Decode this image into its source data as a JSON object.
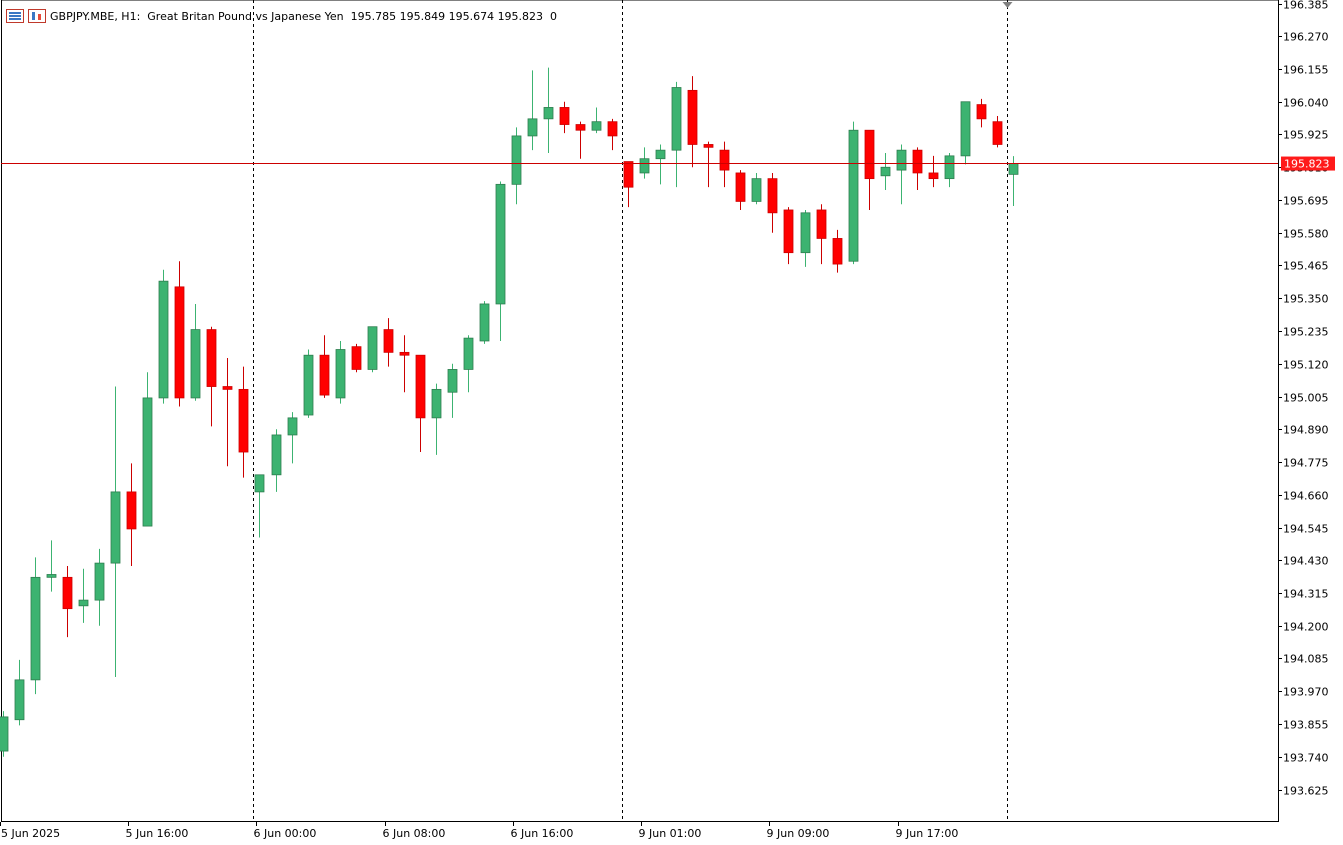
{
  "header": {
    "symbol_line": "GBPJPY.MBE, H1:  Great Britan Pound vs Japanese Yen  195.785 195.849 195.674 195.823  0",
    "icons": [
      "chart-menu-icon",
      "candle-chart-icon"
    ]
  },
  "price_label": "195.823",
  "colors": {
    "bull": "#3cb371",
    "bear": "#ff0000",
    "bid_line": "#cc0000",
    "wick_up": "#3cb371",
    "wick_down": "#cc0000"
  },
  "chart_data": {
    "type": "candlestick",
    "symbol": "GBPJPY.MBE",
    "timeframe": "H1",
    "ylim": [
      193.55,
      196.385
    ],
    "y_ticks": [
      "196.385",
      "196.270",
      "196.155",
      "196.040",
      "195.925",
      "195.810",
      "195.695",
      "195.580",
      "195.465",
      "195.350",
      "195.235",
      "195.120",
      "195.005",
      "194.890",
      "194.775",
      "194.660",
      "194.545",
      "194.430",
      "194.315",
      "194.200",
      "194.085",
      "193.970",
      "193.855",
      "193.740",
      "193.625"
    ],
    "x_ticks": [
      {
        "label": "5 Jun 2025",
        "index": 0
      },
      {
        "label": "5 Jun 16:00",
        "index": 8
      },
      {
        "label": "6 Jun 00:00",
        "index": 16
      },
      {
        "label": "6 Jun 08:00",
        "index": 24
      },
      {
        "label": "6 Jun 16:00",
        "index": 32
      },
      {
        "label": "9 Jun 01:00",
        "index": 40
      },
      {
        "label": "9 Jun 09:00",
        "index": 48
      },
      {
        "label": "9 Jun 17:00",
        "index": 56
      }
    ],
    "separators": [
      16,
      39,
      63
    ],
    "bid": 195.823,
    "candles": [
      {
        "o": 193.76,
        "h": 193.9,
        "l": 193.74,
        "c": 193.88
      },
      {
        "o": 193.87,
        "h": 194.08,
        "l": 193.85,
        "c": 194.01
      },
      {
        "o": 194.01,
        "h": 194.44,
        "l": 193.96,
        "c": 194.37
      },
      {
        "o": 194.37,
        "h": 194.5,
        "l": 194.32,
        "c": 194.38
      },
      {
        "o": 194.37,
        "h": 194.41,
        "l": 194.16,
        "c": 194.26
      },
      {
        "o": 194.27,
        "h": 194.4,
        "l": 194.21,
        "c": 194.29
      },
      {
        "o": 194.29,
        "h": 194.47,
        "l": 194.2,
        "c": 194.42
      },
      {
        "o": 194.42,
        "h": 195.04,
        "l": 194.02,
        "c": 194.67
      },
      {
        "o": 194.67,
        "h": 194.77,
        "l": 194.41,
        "c": 194.54
      },
      {
        "o": 194.55,
        "h": 195.09,
        "l": 194.55,
        "c": 195.0
      },
      {
        "o": 195.0,
        "h": 195.45,
        "l": 194.98,
        "c": 195.41
      },
      {
        "o": 195.39,
        "h": 195.48,
        "l": 194.97,
        "c": 195.0
      },
      {
        "o": 195.0,
        "h": 195.33,
        "l": 194.99,
        "c": 195.24
      },
      {
        "o": 195.24,
        "h": 195.25,
        "l": 194.9,
        "c": 195.04
      },
      {
        "o": 195.04,
        "h": 195.14,
        "l": 194.76,
        "c": 195.03
      },
      {
        "o": 195.03,
        "h": 195.11,
        "l": 194.72,
        "c": 194.81
      },
      {
        "o": 194.67,
        "h": 194.71,
        "l": 194.51,
        "c": 194.73
      },
      {
        "o": 194.73,
        "h": 194.89,
        "l": 194.67,
        "c": 194.87
      },
      {
        "o": 194.87,
        "h": 194.95,
        "l": 194.77,
        "c": 194.93
      },
      {
        "o": 194.94,
        "h": 195.17,
        "l": 194.93,
        "c": 195.15
      },
      {
        "o": 195.15,
        "h": 195.22,
        "l": 195.0,
        "c": 195.01
      },
      {
        "o": 195.0,
        "h": 195.2,
        "l": 194.98,
        "c": 195.17
      },
      {
        "o": 195.18,
        "h": 195.19,
        "l": 195.09,
        "c": 195.1
      },
      {
        "o": 195.1,
        "h": 195.25,
        "l": 195.09,
        "c": 195.25
      },
      {
        "o": 195.24,
        "h": 195.28,
        "l": 195.11,
        "c": 195.16
      },
      {
        "o": 195.16,
        "h": 195.22,
        "l": 195.02,
        "c": 195.15
      },
      {
        "o": 195.15,
        "h": 195.15,
        "l": 194.81,
        "c": 194.93
      },
      {
        "o": 194.93,
        "h": 195.05,
        "l": 194.8,
        "c": 195.03
      },
      {
        "o": 195.02,
        "h": 195.12,
        "l": 194.93,
        "c": 195.1
      },
      {
        "o": 195.1,
        "h": 195.22,
        "l": 195.02,
        "c": 195.21
      },
      {
        "o": 195.2,
        "h": 195.34,
        "l": 195.19,
        "c": 195.33
      },
      {
        "o": 195.33,
        "h": 195.76,
        "l": 195.2,
        "c": 195.75
      },
      {
        "o": 195.75,
        "h": 195.95,
        "l": 195.68,
        "c": 195.92
      },
      {
        "o": 195.92,
        "h": 196.15,
        "l": 195.87,
        "c": 195.98
      },
      {
        "o": 195.98,
        "h": 196.16,
        "l": 195.86,
        "c": 196.02
      },
      {
        "o": 196.02,
        "h": 196.04,
        "l": 195.93,
        "c": 195.96
      },
      {
        "o": 195.96,
        "h": 195.97,
        "l": 195.84,
        "c": 195.94
      },
      {
        "o": 195.94,
        "h": 196.02,
        "l": 195.93,
        "c": 195.97
      },
      {
        "o": 195.97,
        "h": 195.98,
        "l": 195.87,
        "c": 195.92
      },
      {
        "o": 195.83,
        "h": 195.83,
        "l": 195.67,
        "c": 195.74
      },
      {
        "o": 195.79,
        "h": 195.88,
        "l": 195.77,
        "c": 195.84
      },
      {
        "o": 195.84,
        "h": 195.89,
        "l": 195.75,
        "c": 195.87
      },
      {
        "o": 195.87,
        "h": 196.11,
        "l": 195.74,
        "c": 196.09
      },
      {
        "o": 196.08,
        "h": 196.13,
        "l": 195.81,
        "c": 195.89
      },
      {
        "o": 195.89,
        "h": 195.9,
        "l": 195.74,
        "c": 195.88
      },
      {
        "o": 195.87,
        "h": 195.9,
        "l": 195.74,
        "c": 195.8
      },
      {
        "o": 195.79,
        "h": 195.8,
        "l": 195.66,
        "c": 195.69
      },
      {
        "o": 195.69,
        "h": 195.79,
        "l": 195.68,
        "c": 195.77
      },
      {
        "o": 195.77,
        "h": 195.79,
        "l": 195.58,
        "c": 195.65
      },
      {
        "o": 195.66,
        "h": 195.67,
        "l": 195.47,
        "c": 195.51
      },
      {
        "o": 195.51,
        "h": 195.66,
        "l": 195.46,
        "c": 195.65
      },
      {
        "o": 195.66,
        "h": 195.68,
        "l": 195.47,
        "c": 195.56
      },
      {
        "o": 195.56,
        "h": 195.59,
        "l": 195.44,
        "c": 195.47
      },
      {
        "o": 195.48,
        "h": 195.97,
        "l": 195.47,
        "c": 195.94
      },
      {
        "o": 195.94,
        "h": 195.94,
        "l": 195.66,
        "c": 195.77
      },
      {
        "o": 195.78,
        "h": 195.86,
        "l": 195.73,
        "c": 195.81
      },
      {
        "o": 195.8,
        "h": 195.89,
        "l": 195.68,
        "c": 195.87
      },
      {
        "o": 195.87,
        "h": 195.88,
        "l": 195.73,
        "c": 195.79
      },
      {
        "o": 195.79,
        "h": 195.85,
        "l": 195.74,
        "c": 195.77
      },
      {
        "o": 195.77,
        "h": 195.86,
        "l": 195.74,
        "c": 195.85
      },
      {
        "o": 195.85,
        "h": 196.04,
        "l": 195.82,
        "c": 196.04
      },
      {
        "o": 196.03,
        "h": 196.05,
        "l": 195.95,
        "c": 195.98
      },
      {
        "o": 195.97,
        "h": 195.99,
        "l": 195.88,
        "c": 195.89
      },
      {
        "o": 195.785,
        "h": 195.849,
        "l": 195.674,
        "c": 195.823
      }
    ]
  }
}
